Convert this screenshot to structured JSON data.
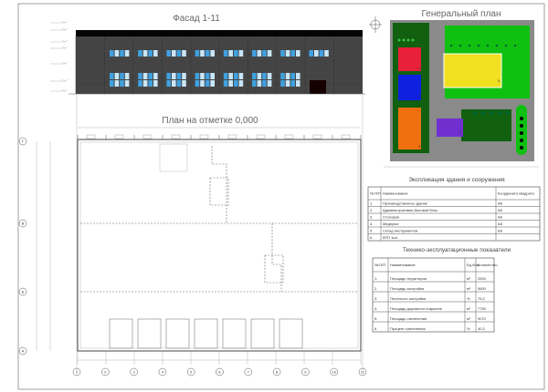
{
  "facade": {
    "title": "Фасад 1-11"
  },
  "plan": {
    "title": "План на отметке 0,000",
    "axes_numbers": [
      "1",
      "2",
      "3",
      "4",
      "5",
      "6",
      "7",
      "7",
      "8",
      "9",
      "10",
      "11"
    ],
    "axes_letters": [
      "А",
      "Б",
      "В",
      "Г"
    ]
  },
  "site_plan": {
    "title": "Генеральный план",
    "building_numbers": [
      "1",
      "2",
      "3",
      "4",
      "5"
    ]
  },
  "explication": {
    "title": "Экспликация здания и сооружения",
    "headers": [
      "№ П/П",
      "Наименование",
      "Координата квадрата"
    ],
    "rows": [
      [
        "1.",
        "Производственное здание",
        "А8"
      ],
      [
        "2.",
        "Административно-бытовой блок",
        "А8"
      ],
      [
        "3.",
        "Столовая",
        "А8"
      ],
      [
        "4.",
        "Медпункт",
        "А8"
      ],
      [
        "5.",
        "Склад инструментов",
        "Б8"
      ],
      [
        "6.",
        "КПП 1шт",
        ""
      ]
    ]
  },
  "indicators": {
    "title": "Технико-эксплуатационные показатели",
    "headers": [
      "№ П/П",
      "Наименование",
      "Ед.Изм",
      "Количество"
    ],
    "rows": [
      [
        "1.",
        "Площадь территории",
        "м²",
        "2500"
      ],
      [
        "2.",
        "Площадь застройки",
        "м²",
        "5600"
      ],
      [
        "3.",
        "Плотность застройки",
        "%",
        "75,2"
      ],
      [
        "4.",
        "Площадь дорожного покрытия",
        "м²",
        "7750"
      ],
      [
        "5.",
        "Площадь озеленения",
        "м²",
        "9070"
      ],
      [
        "6.",
        "Процент озеленения",
        "%",
        "40,3"
      ]
    ]
  },
  "colors": {
    "building1": "#e8203a",
    "building2": "#7030d0",
    "building3": "#f07010",
    "building4": "#1020e0",
    "building5": "#f0e020",
    "green": "#106010",
    "lawn": "#10c010",
    "road": "#808080",
    "window": "#40a0e0"
  }
}
